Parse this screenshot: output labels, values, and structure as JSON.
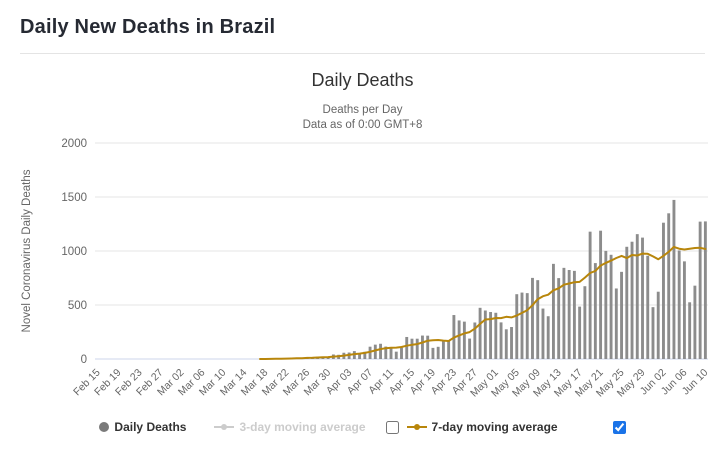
{
  "page": {
    "title": "Daily New Deaths in Brazil"
  },
  "chart": {
    "title": "Daily Deaths",
    "subtitle_line1": "Deaths per Day",
    "subtitle_line2": "Data as of 0:00 GMT+8",
    "y_axis_title": "Novel Coronavirus Daily Deaths",
    "legend": {
      "items": [
        {
          "label": "Daily Deaths",
          "marker": "circle",
          "color": "#7a7a7a",
          "text_color": "#333333",
          "enabled": true
        },
        {
          "label": "3-day moving average",
          "marker": "line-circle",
          "color": "#cccccc",
          "text_color": "#cccccc",
          "enabled": false
        },
        {
          "label": "7-day moving average",
          "marker": "line-circle",
          "color": "#b8860b",
          "text_color": "#333333",
          "enabled": true
        }
      ],
      "ma3_checkbox_checked": false,
      "ma7_checkbox_checked": true
    }
  },
  "colors": {
    "bars": "#8c8c8c",
    "ma7_line": "#b8860b",
    "grid": "#e6e6e6",
    "axis_line": "#ccd6eb",
    "axis_text": "#666666",
    "disabled_legend": "#cccccc",
    "checked_checkbox": "#1a73e8"
  },
  "chart_data": {
    "type": "bar",
    "title": "Daily Deaths",
    "subtitle": "Deaths per Day — Data as of 0:00 GMT+8",
    "xlabel": "",
    "ylabel": "Novel Coronavirus Daily Deaths",
    "ylim": [
      0,
      2000
    ],
    "yticks": [
      0,
      500,
      1000,
      1500,
      2000
    ],
    "grid": true,
    "legend_position": "bottom",
    "x_tick_step": 4,
    "categories": [
      "Feb 15",
      "Feb 16",
      "Feb 17",
      "Feb 18",
      "Feb 19",
      "Feb 20",
      "Feb 21",
      "Feb 22",
      "Feb 23",
      "Feb 24",
      "Feb 25",
      "Feb 26",
      "Feb 27",
      "Feb 28",
      "Feb 29",
      "Mar 01",
      "Mar 02",
      "Mar 03",
      "Mar 04",
      "Mar 05",
      "Mar 06",
      "Mar 07",
      "Mar 08",
      "Mar 09",
      "Mar 10",
      "Mar 11",
      "Mar 12",
      "Mar 13",
      "Mar 14",
      "Mar 15",
      "Mar 16",
      "Mar 17",
      "Mar 18",
      "Mar 19",
      "Mar 20",
      "Mar 21",
      "Mar 22",
      "Mar 23",
      "Mar 24",
      "Mar 25",
      "Mar 26",
      "Mar 27",
      "Mar 28",
      "Mar 29",
      "Mar 30",
      "Mar 31",
      "Apr 01",
      "Apr 02",
      "Apr 03",
      "Apr 04",
      "Apr 05",
      "Apr 06",
      "Apr 07",
      "Apr 08",
      "Apr 09",
      "Apr 10",
      "Apr 11",
      "Apr 12",
      "Apr 13",
      "Apr 14",
      "Apr 15",
      "Apr 16",
      "Apr 17",
      "Apr 18",
      "Apr 19",
      "Apr 20",
      "Apr 21",
      "Apr 22",
      "Apr 23",
      "Apr 24",
      "Apr 25",
      "Apr 26",
      "Apr 27",
      "Apr 28",
      "Apr 29",
      "Apr 30",
      "May 01",
      "May 02",
      "May 03",
      "May 04",
      "May 05",
      "May 06",
      "May 07",
      "May 08",
      "May 09",
      "May 10",
      "May 11",
      "May 12",
      "May 13",
      "May 14",
      "May 15",
      "May 16",
      "May 17",
      "May 18",
      "May 19",
      "May 20",
      "May 21",
      "May 22",
      "May 23",
      "May 24",
      "May 25",
      "May 26",
      "May 27",
      "May 28",
      "May 29",
      "May 30",
      "May 31",
      "Jun 01",
      "Jun 02",
      "Jun 03",
      "Jun 04",
      "Jun 05",
      "Jun 06",
      "Jun 07",
      "Jun 08",
      "Jun 09",
      "Jun 10"
    ],
    "series": [
      {
        "name": "Daily Deaths",
        "type": "bar",
        "color": "#8c8c8c",
        "values": [
          0,
          0,
          0,
          0,
          0,
          0,
          0,
          0,
          0,
          0,
          0,
          0,
          0,
          0,
          0,
          0,
          0,
          0,
          0,
          0,
          0,
          0,
          0,
          0,
          0,
          0,
          0,
          0,
          0,
          0,
          0,
          1,
          2,
          3,
          4,
          4,
          9,
          9,
          12,
          13,
          18,
          15,
          21,
          22,
          23,
          42,
          39,
          58,
          60,
          73,
          54,
          67,
          114,
          133,
          141,
          115,
          99,
          68,
          105,
          204,
          188,
          188,
          217,
          216,
          103,
          113,
          166,
          165,
          407,
          357,
          346,
          189,
          338,
          474,
          449,
          435,
          428,
          339,
          275,
          296,
          600,
          615,
          610,
          751,
          730,
          467,
          396,
          881,
          749,
          844,
          824,
          816,
          485,
          674,
          1179,
          888,
          1188,
          1001,
          965,
          653,
          807,
          1039,
          1086,
          1156,
          1124,
          956,
          480,
          623,
          1262,
          1349,
          1473,
          1005,
          904,
          525,
          679,
          1272,
          1274
        ]
      },
      {
        "name": "7-day moving average",
        "type": "line",
        "color": "#b8860b",
        "derived": "7-day trailing moving average of Daily Deaths"
      },
      {
        "name": "3-day moving average",
        "type": "line",
        "color": "#cccccc",
        "hidden": true
      }
    ]
  }
}
